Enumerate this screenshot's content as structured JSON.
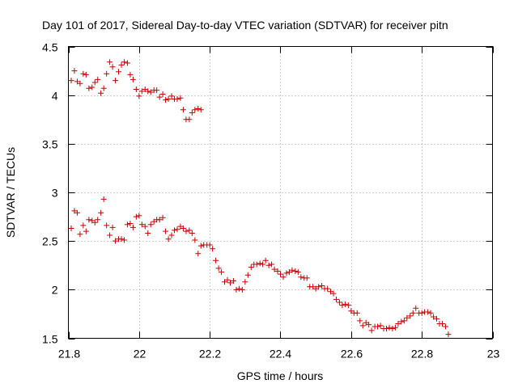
{
  "chart_data": {
    "type": "scatter",
    "title": "Day 101 of 2017, Sidereal Day-to-day VTEC variation (SDTVAR) for receiver pitn",
    "xlabel": "GPS time / hours",
    "ylabel": "SDTVAR / TECUs",
    "xlim": [
      21.8,
      23.0
    ],
    "ylim": [
      1.5,
      4.5
    ],
    "xticks": [
      21.8,
      22,
      22.2,
      22.4,
      22.6,
      22.8,
      23
    ],
    "xtick_labels": [
      "21.8",
      "22",
      "22.2",
      "22.4",
      "22.6",
      "22.8",
      "23"
    ],
    "yticks": [
      1.5,
      2,
      2.5,
      3,
      3.5,
      4,
      4.5
    ],
    "ytick_labels": [
      "1.5",
      "2",
      "2.5",
      "3",
      "3.5",
      "4",
      "4.5"
    ],
    "grid": true,
    "marker": "+",
    "color": "#cc0000",
    "series": [
      {
        "name": "upper",
        "points": [
          [
            21.808,
            4.15
          ],
          [
            21.817,
            4.25
          ],
          [
            21.825,
            4.14
          ],
          [
            21.833,
            4.12
          ],
          [
            21.842,
            4.22
          ],
          [
            21.85,
            4.21
          ],
          [
            21.858,
            4.07
          ],
          [
            21.867,
            4.08
          ],
          [
            21.875,
            4.13
          ],
          [
            21.883,
            4.16
          ],
          [
            21.892,
            4.02
          ],
          [
            21.9,
            4.07
          ],
          [
            21.908,
            4.22
          ],
          [
            21.917,
            4.34
          ],
          [
            21.925,
            4.29
          ],
          [
            21.933,
            4.15
          ],
          [
            21.942,
            4.24
          ],
          [
            21.95,
            4.31
          ],
          [
            21.958,
            4.34
          ],
          [
            21.967,
            4.33
          ],
          [
            21.975,
            4.21
          ],
          [
            21.983,
            4.16
          ],
          [
            21.992,
            4.06
          ],
          [
            22.0,
            3.99
          ],
          [
            22.008,
            4.04
          ],
          [
            22.017,
            4.06
          ],
          [
            22.025,
            4.04
          ],
          [
            22.033,
            4.03
          ],
          [
            22.042,
            4.05
          ],
          [
            22.05,
            4.05
          ],
          [
            22.058,
            3.98
          ],
          [
            22.067,
            4.01
          ],
          [
            22.075,
            3.95
          ],
          [
            22.083,
            3.96
          ],
          [
            22.092,
            3.99
          ],
          [
            22.1,
            3.96
          ],
          [
            22.108,
            3.96
          ],
          [
            22.117,
            3.97
          ],
          [
            22.125,
            3.85
          ],
          [
            22.133,
            3.75
          ],
          [
            22.142,
            3.75
          ],
          [
            22.15,
            3.82
          ],
          [
            22.158,
            3.85
          ],
          [
            22.167,
            3.86
          ],
          [
            22.175,
            3.85
          ]
        ]
      },
      {
        "name": "lower",
        "points": [
          [
            21.808,
            2.63
          ],
          [
            21.817,
            2.81
          ],
          [
            21.825,
            2.79
          ],
          [
            21.833,
            2.57
          ],
          [
            21.842,
            2.66
          ],
          [
            21.85,
            2.6
          ],
          [
            21.858,
            2.72
          ],
          [
            21.867,
            2.71
          ],
          [
            21.875,
            2.69
          ],
          [
            21.883,
            2.72
          ],
          [
            21.892,
            2.79
          ],
          [
            21.9,
            2.93
          ],
          [
            21.908,
            2.66
          ],
          [
            21.917,
            2.56
          ],
          [
            21.925,
            2.64
          ],
          [
            21.933,
            2.5
          ],
          [
            21.942,
            2.52
          ],
          [
            21.95,
            2.52
          ],
          [
            21.958,
            2.51
          ],
          [
            21.967,
            2.67
          ],
          [
            21.975,
            2.68
          ],
          [
            21.983,
            2.64
          ],
          [
            21.992,
            2.75
          ],
          [
            22.0,
            2.76
          ],
          [
            22.008,
            2.67
          ],
          [
            22.017,
            2.65
          ],
          [
            22.025,
            2.58
          ],
          [
            22.033,
            2.67
          ],
          [
            22.042,
            2.7
          ],
          [
            22.05,
            2.72
          ],
          [
            22.058,
            2.72
          ],
          [
            22.067,
            2.74
          ],
          [
            22.075,
            2.6
          ],
          [
            22.083,
            2.52
          ],
          [
            22.092,
            2.56
          ],
          [
            22.1,
            2.61
          ],
          [
            22.108,
            2.62
          ],
          [
            22.117,
            2.65
          ],
          [
            22.125,
            2.63
          ],
          [
            22.133,
            2.6
          ],
          [
            22.142,
            2.61
          ],
          [
            22.15,
            2.58
          ],
          [
            22.158,
            2.51
          ],
          [
            22.167,
            2.37
          ],
          [
            22.175,
            2.45
          ],
          [
            22.183,
            2.46
          ],
          [
            22.192,
            2.46
          ],
          [
            22.2,
            2.46
          ],
          [
            22.208,
            2.42
          ],
          [
            22.217,
            2.3
          ],
          [
            22.225,
            2.22
          ],
          [
            22.233,
            2.18
          ],
          [
            22.242,
            2.08
          ],
          [
            22.25,
            2.1
          ],
          [
            22.258,
            2.07
          ],
          [
            22.267,
            2.09
          ],
          [
            22.275,
            2.0
          ],
          [
            22.283,
            2.01
          ],
          [
            22.292,
            2.0
          ],
          [
            22.3,
            2.08
          ],
          [
            22.308,
            2.15
          ],
          [
            22.317,
            2.23
          ],
          [
            22.325,
            2.26
          ],
          [
            22.333,
            2.26
          ],
          [
            22.342,
            2.27
          ],
          [
            22.35,
            2.26
          ],
          [
            22.358,
            2.3
          ],
          [
            22.367,
            2.25
          ],
          [
            22.375,
            2.26
          ],
          [
            22.383,
            2.21
          ],
          [
            22.392,
            2.19
          ],
          [
            22.4,
            2.16
          ],
          [
            22.408,
            2.13
          ],
          [
            22.417,
            2.17
          ],
          [
            22.425,
            2.18
          ],
          [
            22.433,
            2.2
          ],
          [
            22.442,
            2.19
          ],
          [
            22.45,
            2.18
          ],
          [
            22.458,
            2.13
          ],
          [
            22.467,
            2.12
          ],
          [
            22.475,
            2.12
          ],
          [
            22.483,
            2.03
          ],
          [
            22.492,
            2.03
          ],
          [
            22.5,
            2.01
          ],
          [
            22.508,
            2.03
          ],
          [
            22.517,
            2.04
          ],
          [
            22.525,
            2.01
          ],
          [
            22.533,
            2.01
          ],
          [
            22.542,
            1.98
          ],
          [
            22.55,
            1.96
          ],
          [
            22.558,
            1.9
          ],
          [
            22.567,
            1.87
          ],
          [
            22.575,
            1.84
          ],
          [
            22.583,
            1.85
          ],
          [
            22.592,
            1.84
          ],
          [
            22.6,
            1.78
          ],
          [
            22.608,
            1.76
          ],
          [
            22.617,
            1.76
          ],
          [
            22.625,
            1.68
          ],
          [
            22.633,
            1.63
          ],
          [
            22.642,
            1.66
          ],
          [
            22.65,
            1.64
          ],
          [
            22.658,
            1.58
          ],
          [
            22.667,
            1.62
          ],
          [
            22.675,
            1.62
          ],
          [
            22.683,
            1.63
          ],
          [
            22.692,
            1.6
          ],
          [
            22.7,
            1.6
          ],
          [
            22.708,
            1.61
          ],
          [
            22.717,
            1.6
          ],
          [
            22.725,
            1.61
          ],
          [
            22.733,
            1.65
          ],
          [
            22.742,
            1.67
          ],
          [
            22.75,
            1.68
          ],
          [
            22.758,
            1.71
          ],
          [
            22.767,
            1.73
          ],
          [
            22.775,
            1.76
          ],
          [
            22.783,
            1.81
          ],
          [
            22.792,
            1.76
          ],
          [
            22.8,
            1.76
          ],
          [
            22.808,
            1.77
          ],
          [
            22.817,
            1.77
          ],
          [
            22.825,
            1.76
          ],
          [
            22.833,
            1.72
          ],
          [
            22.842,
            1.7
          ],
          [
            22.85,
            1.65
          ],
          [
            22.858,
            1.65
          ],
          [
            22.867,
            1.62
          ],
          [
            22.875,
            1.54
          ]
        ]
      }
    ]
  }
}
